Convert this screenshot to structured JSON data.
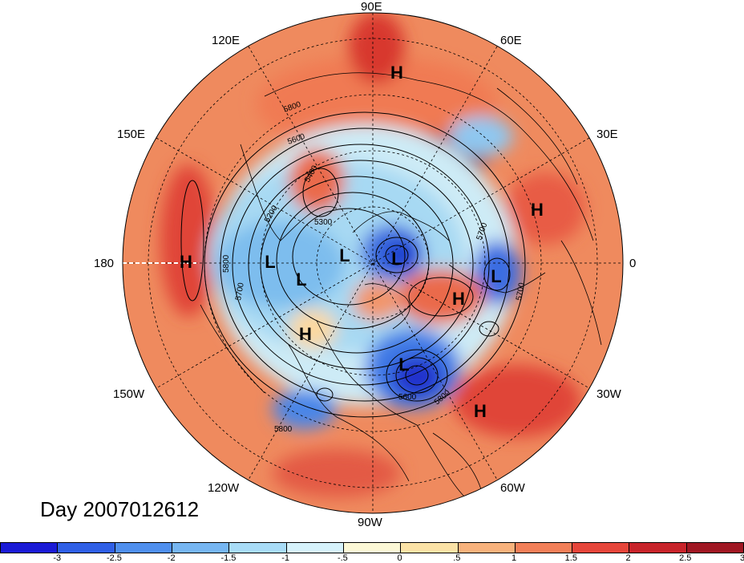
{
  "title": "Day 2007012612",
  "longitude_labels": {
    "e90": "90E",
    "e120": "120E",
    "e60": "60E",
    "e150": "150E",
    "e30": "30E",
    "lon180": "180",
    "lon0": "0",
    "w150": "150W",
    "w30": "30W",
    "w120": "120W",
    "w60": "60W",
    "w90": "90W"
  },
  "pressure_centers": [
    {
      "type": "H",
      "label": "H"
    },
    {
      "type": "H",
      "label": "H"
    },
    {
      "type": "H",
      "label": "H"
    },
    {
      "type": "H",
      "label": "H"
    },
    {
      "type": "H",
      "label": "H"
    },
    {
      "type": "H",
      "label": "H"
    },
    {
      "type": "L",
      "label": "L"
    },
    {
      "type": "L",
      "label": "L"
    },
    {
      "type": "L",
      "label": "L"
    },
    {
      "type": "L",
      "label": "L"
    },
    {
      "type": "L",
      "label": "L"
    },
    {
      "type": "L",
      "label": "L"
    }
  ],
  "contour_labels": [
    "5800",
    "5600",
    "5400",
    "5300",
    "5200",
    "5800",
    "5700",
    "5700",
    "5700",
    "5600",
    "5800",
    "5800"
  ],
  "colorbar": {
    "colors": [
      "#1a1ad6",
      "#2f5fe6",
      "#4f8fee",
      "#76b6f2",
      "#a8dcf7",
      "#d6f2fb",
      "#fcf8d6",
      "#fbe2a6",
      "#f8b27c",
      "#f27f58",
      "#e6453a",
      "#c8232a",
      "#a01622"
    ],
    "ticks": [
      "-3",
      "-2.5",
      "-2",
      "-1.5",
      "-1",
      "-.5",
      "0",
      ".5",
      "1",
      "1.5",
      "2",
      "2.5",
      "3"
    ]
  }
}
